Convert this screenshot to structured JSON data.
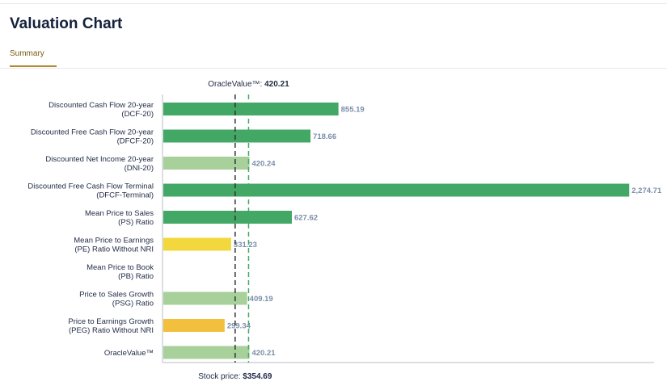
{
  "page": {
    "title": "Valuation Chart",
    "tabs": [
      {
        "label": "Summary",
        "active": true
      }
    ]
  },
  "chart_data": {
    "type": "bar",
    "orientation": "horizontal",
    "categories": [
      [
        "Discounted Cash Flow 20-year",
        "(DCF-20)"
      ],
      [
        "Discounted Free Cash Flow 20-year",
        "(DFCF-20)"
      ],
      [
        "Discounted Net Income 20-year",
        "(DNI-20)"
      ],
      [
        "Discounted Free Cash Flow Terminal",
        "(DFCF-Terminal)"
      ],
      [
        "Mean Price to Sales",
        "(PS) Ratio"
      ],
      [
        "Mean Price to Earnings",
        "(PE) Ratio Without NRI"
      ],
      [
        "Mean Price to Book",
        "(PB) Ratio"
      ],
      [
        "Price to Sales Growth",
        "(PSG) Ratio"
      ],
      [
        "Price to Earnings Growth",
        "(PEG) Ratio Without NRI"
      ],
      [
        "OracleValue™"
      ]
    ],
    "values": [
      855.19,
      718.66,
      420.24,
      2274.71,
      627.62,
      331.23,
      null,
      409.19,
      299.34,
      420.21
    ],
    "value_labels": [
      "855.19",
      "718.66",
      "420.24",
      "2,274.71",
      "627.62",
      "331.23",
      "",
      "409.19",
      "299.34",
      "420.21"
    ],
    "bar_colors": [
      "#43a866",
      "#43a866",
      "#a8d09a",
      "#43a866",
      "#43a866",
      "#f2d83d",
      null,
      "#a8d09a",
      "#f2c03d",
      "#a8d09a"
    ],
    "xlim": [
      0,
      2400
    ],
    "reference_lines": [
      {
        "label": "OracleValue™: ",
        "value_text": "420.21",
        "value": 420.21,
        "color": "#43a866",
        "position": "top"
      },
      {
        "label": "Stock price: ",
        "value_text": "$354.69",
        "value": 354.69,
        "color": "#333333",
        "position": "bottom"
      }
    ]
  }
}
